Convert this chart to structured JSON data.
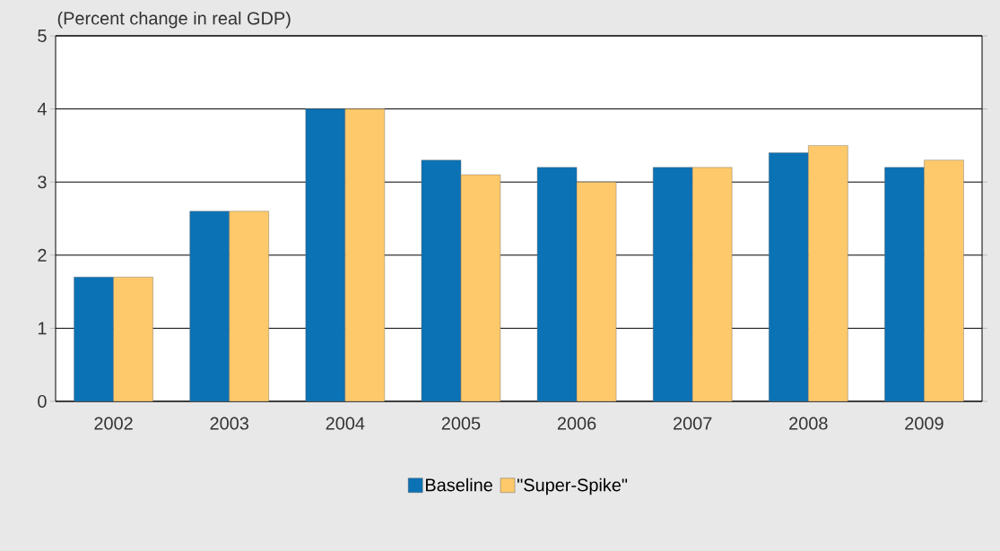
{
  "chart_data": {
    "type": "bar",
    "ylabel": "(Percent change in real GDP)",
    "categories": [
      "2002",
      "2003",
      "2004",
      "2005",
      "2006",
      "2007",
      "2008",
      "2009"
    ],
    "series": [
      {
        "name": "Baseline",
        "color": "#0a72b5",
        "values": [
          1.7,
          2.6,
          4.0,
          3.3,
          3.2,
          3.2,
          3.4,
          3.2
        ]
      },
      {
        "name": "\"Super-Spike\"",
        "color": "#fdc96a",
        "values": [
          1.7,
          2.6,
          4.0,
          3.1,
          3.0,
          3.2,
          3.5,
          3.3
        ]
      }
    ],
    "ylim": [
      0,
      5
    ],
    "yticks": [
      0,
      1,
      2,
      3,
      4,
      5
    ],
    "grid": "y",
    "legend": "bottom"
  }
}
